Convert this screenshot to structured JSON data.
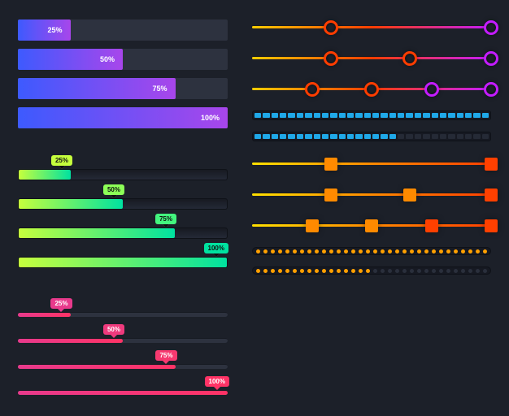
{
  "background_color": "#1c2029",
  "groupA": {
    "gradient": [
      "#3d5afe",
      "#a846eb"
    ],
    "bars": [
      {
        "pct": 25,
        "label": "25%"
      },
      {
        "pct": 50,
        "label": "50%"
      },
      {
        "pct": 75,
        "label": "75%"
      },
      {
        "pct": 100,
        "label": "100%"
      }
    ]
  },
  "groupB": {
    "gradient": [
      "#c6ff3d",
      "#00e2a0"
    ],
    "bars": [
      {
        "pct": 25,
        "label": "25%",
        "tag_color": "#c6ff3d"
      },
      {
        "pct": 50,
        "label": "50%",
        "tag_color": "#8cff57"
      },
      {
        "pct": 75,
        "label": "75%",
        "tag_color": "#43f57e"
      },
      {
        "pct": 100,
        "label": "100%",
        "tag_color": "#00e2a0"
      }
    ]
  },
  "groupC": {
    "gradient": [
      "#e83a8c",
      "#ff3366"
    ],
    "bars": [
      {
        "pct": 25,
        "label": "25%",
        "tag_color": "#e83a8c"
      },
      {
        "pct": 50,
        "label": "50%",
        "tag_color": "#ef3a7d"
      },
      {
        "pct": 75,
        "label": "75%",
        "tag_color": "#f6396f"
      },
      {
        "pct": 100,
        "label": "100%",
        "tag_color": "#ff3366"
      }
    ]
  },
  "circleSliders": {
    "gradient": [
      "#ffcc00",
      "#ff3d00",
      "#c41cff"
    ],
    "rows": [
      {
        "handles": [
          33,
          100
        ]
      },
      {
        "handles": [
          33,
          66,
          100
        ]
      },
      {
        "handles": [
          25,
          50,
          75,
          100
        ]
      }
    ]
  },
  "blueSegs": {
    "on_color": "#1fa8e8",
    "off_color": "#252a36",
    "total": 28,
    "rows": [
      {
        "filled": 28
      },
      {
        "filled": 17
      }
    ]
  },
  "squareSliders": {
    "gradient": [
      "#ffe000",
      "#ff8a00",
      "#ff4000"
    ],
    "rows": [
      {
        "handles": [
          33,
          100
        ]
      },
      {
        "handles": [
          33,
          66,
          100
        ]
      },
      {
        "handles": [
          25,
          50,
          75,
          100
        ]
      }
    ]
  },
  "dotRows": {
    "on_color": "#ffa000",
    "off_color": "#2a2f3c",
    "total": 32,
    "rows": [
      {
        "filled": 32
      },
      {
        "filled": 16
      }
    ]
  }
}
